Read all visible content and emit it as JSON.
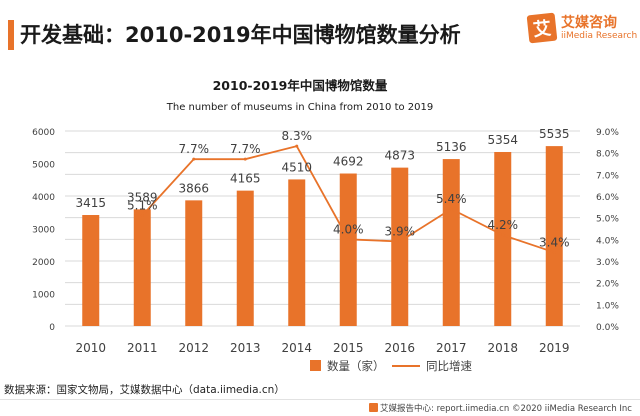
{
  "header": {
    "title": "开发基础：2010-2019年中国博物馆数量分析"
  },
  "logo": {
    "mark": "艾",
    "cn": "艾媒咨询",
    "en": "iiMedia Research"
  },
  "chart_data": {
    "type": "bar",
    "title": "2010-2019年中国博物馆数量",
    "subtitle": "The number of museums in China  from 2010 to 2019",
    "categories": [
      "2010",
      "2011",
      "2012",
      "2013",
      "2014",
      "2015",
      "2016",
      "2017",
      "2018",
      "2019"
    ],
    "series": [
      {
        "name": "数量（家）",
        "type": "bar",
        "axis": "left",
        "values": [
          3415,
          3589,
          3866,
          4165,
          4510,
          4692,
          4873,
          5136,
          5354,
          5535
        ],
        "labels": [
          "3415",
          "3589",
          "3866",
          "4165",
          "4510",
          "4692",
          "4873",
          "5136",
          "5354",
          "5535"
        ]
      },
      {
        "name": "同比增速",
        "type": "line",
        "axis": "right",
        "values": [
          null,
          5.1,
          7.7,
          7.7,
          8.3,
          4.0,
          3.9,
          5.4,
          4.2,
          3.4
        ],
        "labels": [
          "",
          "5.1%",
          "7.7%",
          "7.7%",
          "8.3%",
          "4.0%",
          "3.9%",
          "5.4%",
          "4.2%",
          "3.4%"
        ]
      }
    ],
    "y_left": {
      "min": 0,
      "max": 6000,
      "ticks": [
        "0",
        "1000",
        "2000",
        "3000",
        "4000",
        "5000",
        "6000"
      ]
    },
    "y_right": {
      "min": 0,
      "max": 9,
      "ticks": [
        "0.0%",
        "1.0%",
        "2.0%",
        "3.0%",
        "4.0%",
        "5.0%",
        "6.0%",
        "7.0%",
        "8.0%",
        "9.0%"
      ]
    },
    "grid": true,
    "legend_position": "bottom",
    "colors": {
      "bar": "#e8732a",
      "line": "#e8732a",
      "grid": "#d9d9d9",
      "text": "#404040"
    }
  },
  "source": "数据来源：国家文物局，艾媒数据中心（data.iimedia.cn）",
  "footer": "艾媒报告中心: report.iimedia.cn  ©2020  iiMedia Research  Inc"
}
